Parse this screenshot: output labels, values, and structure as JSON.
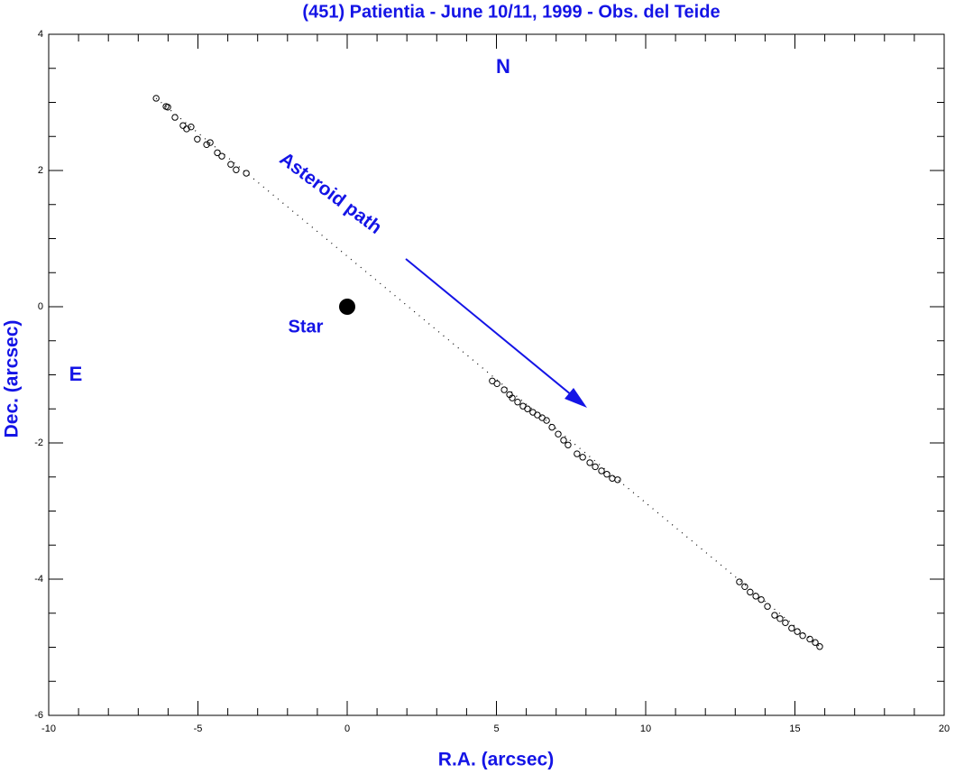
{
  "chart_data": {
    "type": "scatter",
    "title": "(451) Patientia - June 10/11, 1999 - Obs. del Teide",
    "x_label": "R.A. (arcsec)",
    "y_label": "Dec. (arcsec)",
    "annotations": [
      "N",
      "E",
      "Star",
      "Asteroid path"
    ],
    "xlim": [
      -10,
      20
    ],
    "xticks": [
      -10,
      -5,
      0,
      5,
      10,
      15,
      20
    ],
    "xminor": 1,
    "ylim": [
      -6,
      4
    ],
    "yticks": [
      -6,
      -4,
      -2,
      0,
      2,
      4
    ],
    "yminor": 0.5,
    "color": "#1414e6",
    "series": [
      {
        "marker": "line",
        "color": "#000000",
        "x": [
          -6.4,
          15.83
        ],
        "y": [
          3.06,
          -4.99
        ]
      },
      {
        "marker": "open-circle",
        "color": "#000000",
        "x": [
          -6.4,
          -6.07,
          -6.01,
          -5.77,
          -5.5,
          -5.38,
          -5.23,
          -5.02,
          -4.71,
          -4.59,
          -4.35,
          -4.2,
          -3.9,
          -3.72,
          -3.38,
          4.86,
          5.02,
          5.26,
          5.44,
          5.53,
          5.71,
          5.89,
          6.04,
          6.22,
          6.37,
          6.53,
          6.68,
          6.86,
          7.07,
          7.25,
          7.4,
          7.7,
          7.89,
          8.13,
          8.31,
          8.52,
          8.7,
          8.88,
          9.06,
          13.14,
          13.32,
          13.5,
          13.69,
          13.87,
          14.08,
          14.32,
          14.5,
          14.68,
          14.89,
          15.08,
          15.26,
          15.5,
          15.68,
          15.83
        ],
        "y": [
          3.06,
          2.94,
          2.93,
          2.78,
          2.66,
          2.61,
          2.64,
          2.46,
          2.38,
          2.41,
          2.26,
          2.21,
          2.09,
          2.01,
          1.96,
          -1.09,
          -1.13,
          -1.22,
          -1.29,
          -1.34,
          -1.4,
          -1.46,
          -1.5,
          -1.55,
          -1.59,
          -1.63,
          -1.67,
          -1.77,
          -1.87,
          -1.96,
          -2.03,
          -2.16,
          -2.21,
          -2.29,
          -2.35,
          -2.41,
          -2.46,
          -2.52,
          -2.54,
          -4.04,
          -4.11,
          -4.19,
          -4.25,
          -4.3,
          -4.4,
          -4.53,
          -4.58,
          -4.64,
          -4.72,
          -4.77,
          -4.83,
          -4.88,
          -4.93,
          -4.99
        ]
      },
      {
        "marker": "filled-circle",
        "color": "#000000",
        "x": [
          0
        ],
        "y": [
          0
        ]
      }
    ]
  }
}
